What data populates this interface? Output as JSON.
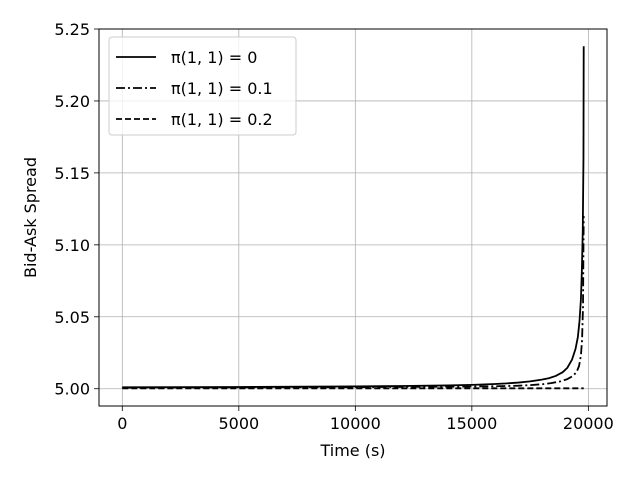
{
  "chart_data": {
    "type": "line",
    "title": "",
    "xlabel": "Time (s)",
    "ylabel": "Bid-Ask Spread",
    "xlim": [
      -1000,
      20800
    ],
    "ylim": [
      4.988,
      5.25
    ],
    "xticks": [
      0,
      5000,
      10000,
      15000,
      20000
    ],
    "xtick_labels": [
      "0",
      "5000",
      "10000",
      "15000",
      "20000"
    ],
    "yticks": [
      5.0,
      5.05,
      5.1,
      5.15,
      5.2,
      5.25
    ],
    "ytick_labels": [
      "5.00",
      "5.05",
      "5.10",
      "5.15",
      "5.20",
      "5.25"
    ],
    "grid": true,
    "legend_position": "top-left",
    "series": [
      {
        "name": "π(1, 1) = 0",
        "line_style": "solid",
        "color": "#000000",
        "x": [
          0,
          5000,
          10000,
          12000,
          14000,
          15000,
          16000,
          16500,
          17000,
          17500,
          18000,
          18300,
          18600,
          18900,
          19100,
          19300,
          19450,
          19550,
          19620,
          19680,
          19720,
          19760,
          19790,
          19800
        ],
        "y": [
          5.001,
          5.0012,
          5.0016,
          5.0019,
          5.0023,
          5.0027,
          5.0033,
          5.0037,
          5.0043,
          5.0051,
          5.0063,
          5.0073,
          5.0089,
          5.0115,
          5.0146,
          5.0203,
          5.0277,
          5.036,
          5.047,
          5.062,
          5.081,
          5.11,
          5.16,
          5.238
        ]
      },
      {
        "name": "π(1, 1) = 0.1",
        "line_style": "dashdot",
        "color": "#000000",
        "x": [
          0,
          10000,
          14000,
          16000,
          17000,
          17500,
          18000,
          18400,
          18800,
          19100,
          19350,
          19500,
          19600,
          19680,
          19730,
          19770,
          19800
        ],
        "y": [
          5.0008,
          5.0011,
          5.0014,
          5.0017,
          5.0021,
          5.0025,
          5.0031,
          5.0039,
          5.0051,
          5.0067,
          5.009,
          5.0118,
          5.0158,
          5.023,
          5.034,
          5.057,
          5.12
        ]
      },
      {
        "name": "π(1, 1) = 0.2",
        "line_style": "dashed",
        "color": "#000000",
        "x": [
          0,
          5000,
          10000,
          15000,
          19800
        ],
        "y": [
          5.0003,
          5.0003,
          5.0003,
          5.0003,
          5.0003
        ]
      }
    ]
  }
}
